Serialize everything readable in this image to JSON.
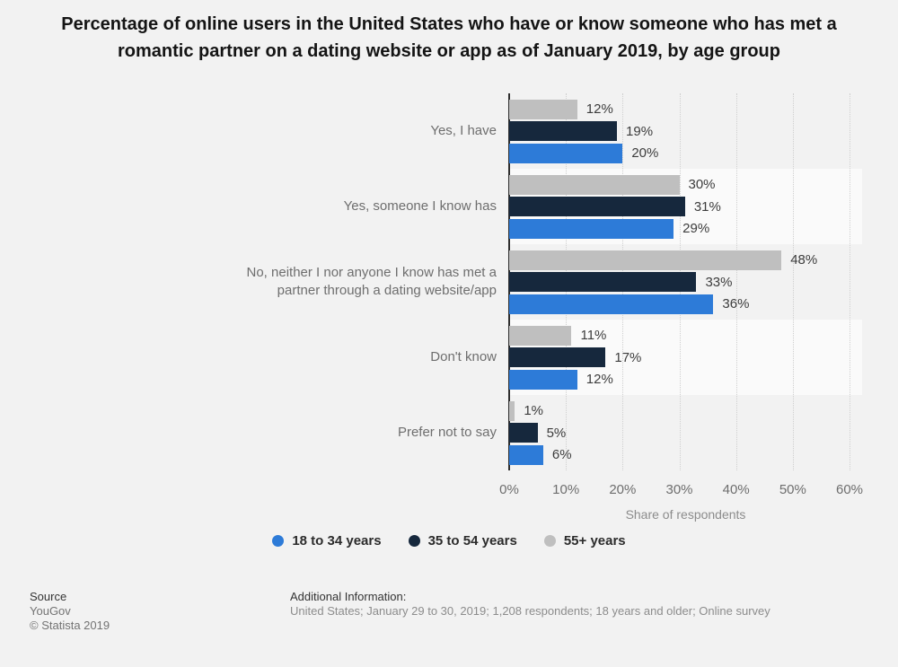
{
  "chart_data": {
    "type": "bar",
    "orientation": "horizontal",
    "title": "Percentage of online users in the United States who have or know someone who has met a romantic partner on a dating website or app as of January 2019, by age group",
    "xlabel": "Share of respondents",
    "xlim": [
      0,
      60
    ],
    "x_ticks": [
      "0%",
      "10%",
      "20%",
      "30%",
      "40%",
      "50%",
      "60%"
    ],
    "grid": "vertical-dotted",
    "legend_position": "bottom",
    "value_label_suffix": "%",
    "categories": [
      "Yes, I have",
      "Yes, someone I know has",
      "No, neither I nor anyone I know has met a partner through a dating website/app",
      "Don't know",
      "Prefer not to say"
    ],
    "series": [
      {
        "name": "18 to 34 years",
        "color": "#2d7bd8",
        "values": [
          20,
          29,
          36,
          12,
          6
        ]
      },
      {
        "name": "35 to 54 years",
        "color": "#16283d",
        "values": [
          19,
          31,
          33,
          17,
          5
        ]
      },
      {
        "name": "55+ years",
        "color": "#bfbfbf",
        "values": [
          12,
          30,
          48,
          11,
          1
        ]
      }
    ],
    "row_order_top_to_bottom": [
      "55+ years",
      "35 to 54 years",
      "18 to 34 years"
    ]
  },
  "footer": {
    "source_label": "Source",
    "source_value": "YouGov",
    "copyright": "© Statista 2019",
    "additional_label": "Additional Information:",
    "additional_value": "United States; January 29 to 30, 2019; 1,208 respondents; 18 years and older; Online survey"
  }
}
